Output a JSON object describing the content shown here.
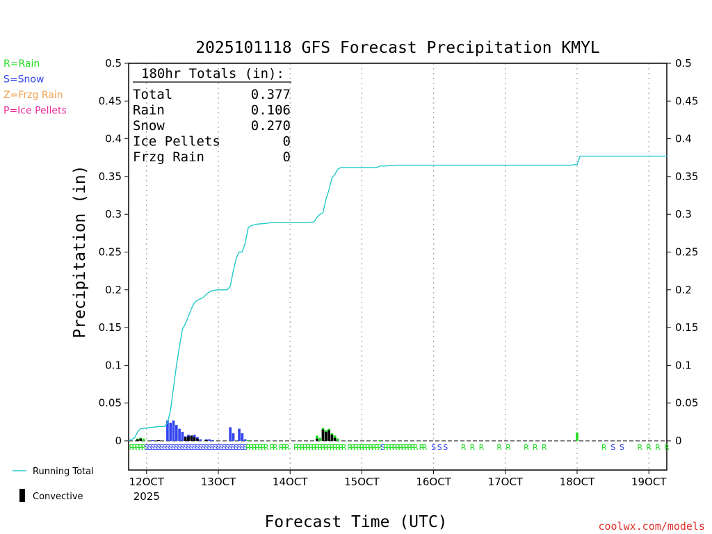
{
  "chart_data": {
    "type": "bar",
    "title": "2025101118 GFS Forecast Precipitation KMYL",
    "xlabel": "Forecast Time (UTC)",
    "ylabel": "Precipitation (in)",
    "ylim": [
      0,
      0.5
    ],
    "yticks": [
      "0",
      "0.05",
      "0.1",
      "0.15",
      "0.2",
      "0.25",
      "0.3",
      "0.35",
      "0.4",
      "0.45",
      "0.5"
    ],
    "xticks": [
      {
        "label": "12OCT",
        "sub": "2025",
        "hour": 6
      },
      {
        "label": "13OCT",
        "sub": "",
        "hour": 30
      },
      {
        "label": "14OCT",
        "sub": "",
        "hour": 54
      },
      {
        "label": "15OCT",
        "sub": "",
        "hour": 78
      },
      {
        "label": "16OCT",
        "sub": "",
        "hour": 102
      },
      {
        "label": "17OCT",
        "sub": "",
        "hour": 126
      },
      {
        "label": "18OCT",
        "sub": "",
        "hour": 150
      },
      {
        "label": "19OCT",
        "sub": "",
        "hour": 174
      }
    ],
    "xlim_hours": [
      0,
      180
    ],
    "grid": true,
    "type_legend": [
      {
        "label": "R=Rain",
        "color": "#22dd22"
      },
      {
        "label": "S=Snow",
        "color": "#3344ee"
      },
      {
        "label": "Z=Frzg Rain",
        "color": "#f0a050"
      },
      {
        "label": "P=Ice Pellets",
        "color": "#ee2a9a"
      }
    ],
    "series_legend": [
      {
        "label": "Running Total",
        "color": "#22c8c8"
      },
      {
        "label": "Convective",
        "color": "#000000"
      }
    ],
    "totals_header": "180hr Totals (in):",
    "totals": [
      {
        "label": "Total",
        "value": "0.377"
      },
      {
        "label": "Rain",
        "value": "0.106"
      },
      {
        "label": "Snow",
        "value": "0.270"
      },
      {
        "label": "Ice Pellets",
        "value": "0"
      },
      {
        "label": "Frzg Rain",
        "value": "0"
      }
    ],
    "running_total": [
      [
        0,
        0
      ],
      [
        2,
        0.004
      ],
      [
        3,
        0.012
      ],
      [
        4,
        0.016
      ],
      [
        6,
        0.017
      ],
      [
        8,
        0.018
      ],
      [
        10,
        0.019
      ],
      [
        12,
        0.019
      ],
      [
        13,
        0.024
      ],
      [
        14,
        0.04
      ],
      [
        15,
        0.07
      ],
      [
        16,
        0.1
      ],
      [
        17,
        0.125
      ],
      [
        18,
        0.148
      ],
      [
        19,
        0.155
      ],
      [
        20,
        0.165
      ],
      [
        21,
        0.175
      ],
      [
        22,
        0.183
      ],
      [
        23,
        0.186
      ],
      [
        24,
        0.188
      ],
      [
        25,
        0.19
      ],
      [
        26,
        0.194
      ],
      [
        27,
        0.197
      ],
      [
        28,
        0.199
      ],
      [
        30,
        0.2
      ],
      [
        32,
        0.2
      ],
      [
        33,
        0.2
      ],
      [
        34,
        0.205
      ],
      [
        35,
        0.225
      ],
      [
        36,
        0.242
      ],
      [
        37,
        0.25
      ],
      [
        38,
        0.25
      ],
      [
        39,
        0.262
      ],
      [
        40,
        0.282
      ],
      [
        41,
        0.285
      ],
      [
        42,
        0.286
      ],
      [
        43,
        0.287
      ],
      [
        46,
        0.288
      ],
      [
        48,
        0.289
      ],
      [
        54,
        0.289
      ],
      [
        60,
        0.289
      ],
      [
        62,
        0.29
      ],
      [
        63,
        0.296
      ],
      [
        64,
        0.3
      ],
      [
        65,
        0.302
      ],
      [
        66,
        0.32
      ],
      [
        67,
        0.332
      ],
      [
        68,
        0.348
      ],
      [
        69,
        0.353
      ],
      [
        70,
        0.36
      ],
      [
        71,
        0.362
      ],
      [
        78,
        0.362
      ],
      [
        83,
        0.362
      ],
      [
        84,
        0.364
      ],
      [
        86,
        0.364
      ],
      [
        90,
        0.365
      ],
      [
        120,
        0.365
      ],
      [
        148,
        0.365
      ],
      [
        150,
        0.366
      ],
      [
        151,
        0.377
      ],
      [
        180,
        0.377
      ]
    ],
    "bars": [
      {
        "hour": 3,
        "value": 0.003,
        "type": "R"
      },
      {
        "hour": 4,
        "value": 0.004,
        "type": "R"
      },
      {
        "hour": 5,
        "value": 0.003,
        "type": "R"
      },
      {
        "hour": 8,
        "value": 0.001,
        "type": "S"
      },
      {
        "hour": 10,
        "value": 0.001,
        "type": "S"
      },
      {
        "hour": 13,
        "value": 0.027,
        "type": "S"
      },
      {
        "hour": 14,
        "value": 0.024,
        "type": "S"
      },
      {
        "hour": 15,
        "value": 0.027,
        "type": "S"
      },
      {
        "hour": 16,
        "value": 0.021,
        "type": "S"
      },
      {
        "hour": 17,
        "value": 0.016,
        "type": "S"
      },
      {
        "hour": 18,
        "value": 0.012,
        "type": "S"
      },
      {
        "hour": 19,
        "value": 0.006,
        "type": "S"
      },
      {
        "hour": 20,
        "value": 0.008,
        "type": "S"
      },
      {
        "hour": 21,
        "value": 0.007,
        "type": "S"
      },
      {
        "hour": 22,
        "value": 0.008,
        "type": "S"
      },
      {
        "hour": 23,
        "value": 0.005,
        "type": "S"
      },
      {
        "hour": 24,
        "value": 0.002,
        "type": "S"
      },
      {
        "hour": 26,
        "value": 0.002,
        "type": "S"
      },
      {
        "hour": 27,
        "value": 0.002,
        "type": "S"
      },
      {
        "hour": 28,
        "value": 0.001,
        "type": "S"
      },
      {
        "hour": 34,
        "value": 0.018,
        "type": "S"
      },
      {
        "hour": 35,
        "value": 0.01,
        "type": "S"
      },
      {
        "hour": 37,
        "value": 0.016,
        "type": "S"
      },
      {
        "hour": 38,
        "value": 0.01,
        "type": "S"
      },
      {
        "hour": 39,
        "value": 0.002,
        "type": "S"
      },
      {
        "hour": 40,
        "value": 0.001,
        "type": "R"
      },
      {
        "hour": 63,
        "value": 0.007,
        "type": "R"
      },
      {
        "hour": 64,
        "value": 0.004,
        "type": "R"
      },
      {
        "hour": 65,
        "value": 0.017,
        "type": "R"
      },
      {
        "hour": 66,
        "value": 0.014,
        "type": "R"
      },
      {
        "hour": 67,
        "value": 0.016,
        "type": "R"
      },
      {
        "hour": 68,
        "value": 0.01,
        "type": "R"
      },
      {
        "hour": 69,
        "value": 0.007,
        "type": "R"
      },
      {
        "hour": 70,
        "value": 0.003,
        "type": "R"
      },
      {
        "hour": 84,
        "value": 0.001,
        "type": "R"
      },
      {
        "hour": 150,
        "value": 0.011,
        "type": "R"
      }
    ],
    "convective": [
      {
        "hour": 3,
        "value": 0.002
      },
      {
        "hour": 4,
        "value": 0.003
      },
      {
        "hour": 10,
        "value": 0.001
      },
      {
        "hour": 19,
        "value": 0.005
      },
      {
        "hour": 20,
        "value": 0.006
      },
      {
        "hour": 21,
        "value": 0.007
      },
      {
        "hour": 22,
        "value": 0.005
      },
      {
        "hour": 23,
        "value": 0.003
      },
      {
        "hour": 26,
        "value": 0.001
      },
      {
        "hour": 63,
        "value": 0.003
      },
      {
        "hour": 65,
        "value": 0.015
      },
      {
        "hour": 66,
        "value": 0.012
      },
      {
        "hour": 67,
        "value": 0.014
      },
      {
        "hour": 68,
        "value": 0.008
      },
      {
        "hour": 69,
        "value": 0.004
      }
    ],
    "ptype_markers": [
      [
        1,
        "R"
      ],
      [
        2,
        "R"
      ],
      [
        3,
        "R"
      ],
      [
        4,
        "R"
      ],
      [
        5,
        "R"
      ],
      [
        6,
        "S"
      ],
      [
        7,
        "S"
      ],
      [
        8,
        "S"
      ],
      [
        9,
        "S"
      ],
      [
        10,
        "S"
      ],
      [
        11,
        "S"
      ],
      [
        12,
        "S"
      ],
      [
        13,
        "S"
      ],
      [
        14,
        "S"
      ],
      [
        15,
        "S"
      ],
      [
        16,
        "S"
      ],
      [
        17,
        "S"
      ],
      [
        18,
        "S"
      ],
      [
        19,
        "S"
      ],
      [
        20,
        "S"
      ],
      [
        21,
        "S"
      ],
      [
        22,
        "S"
      ],
      [
        23,
        "S"
      ],
      [
        24,
        "S"
      ],
      [
        25,
        "S"
      ],
      [
        26,
        "S"
      ],
      [
        27,
        "S"
      ],
      [
        28,
        "S"
      ],
      [
        29,
        "S"
      ],
      [
        30,
        "S"
      ],
      [
        31,
        "S"
      ],
      [
        32,
        "S"
      ],
      [
        33,
        "S"
      ],
      [
        34,
        "S"
      ],
      [
        35,
        "S"
      ],
      [
        36,
        "S"
      ],
      [
        37,
        "S"
      ],
      [
        38,
        "S"
      ],
      [
        39,
        "S"
      ],
      [
        40,
        "R"
      ],
      [
        41,
        "R"
      ],
      [
        42,
        "R"
      ],
      [
        43,
        "R"
      ],
      [
        44,
        "R"
      ],
      [
        45,
        "R"
      ],
      [
        46,
        "R"
      ],
      [
        48,
        "R"
      ],
      [
        49,
        "R"
      ],
      [
        51,
        "R"
      ],
      [
        52,
        "R"
      ],
      [
        53,
        "R"
      ],
      [
        56,
        "R"
      ],
      [
        57,
        "R"
      ],
      [
        58,
        "R"
      ],
      [
        59,
        "R"
      ],
      [
        60,
        "R"
      ],
      [
        61,
        "R"
      ],
      [
        62,
        "R"
      ],
      [
        63,
        "R"
      ],
      [
        64,
        "R"
      ],
      [
        65,
        "R"
      ],
      [
        66,
        "R"
      ],
      [
        67,
        "R"
      ],
      [
        68,
        "R"
      ],
      [
        69,
        "R"
      ],
      [
        70,
        "R"
      ],
      [
        71,
        "R"
      ],
      [
        72,
        "R"
      ],
      [
        74,
        "R"
      ],
      [
        75,
        "R"
      ],
      [
        76,
        "R"
      ],
      [
        77,
        "R"
      ],
      [
        78,
        "R"
      ],
      [
        79,
        "R"
      ],
      [
        80,
        "R"
      ],
      [
        81,
        "R"
      ],
      [
        82,
        "R"
      ],
      [
        83,
        "R"
      ],
      [
        84,
        "R"
      ],
      [
        85,
        "S"
      ],
      [
        86,
        "R"
      ],
      [
        87,
        "R"
      ],
      [
        88,
        "R"
      ],
      [
        89,
        "R"
      ],
      [
        90,
        "R"
      ],
      [
        91,
        "R"
      ],
      [
        92,
        "R"
      ],
      [
        93,
        "R"
      ],
      [
        94,
        "R"
      ],
      [
        95,
        "R"
      ],
      [
        96,
        "R"
      ],
      [
        98,
        "R"
      ],
      [
        99,
        "R"
      ],
      [
        102,
        "S"
      ],
      [
        104,
        "S"
      ],
      [
        106,
        "S"
      ],
      [
        112,
        "R"
      ],
      [
        115,
        "R"
      ],
      [
        118,
        "R"
      ],
      [
        124,
        "R"
      ],
      [
        127,
        "R"
      ],
      [
        133,
        "R"
      ],
      [
        136,
        "R"
      ],
      [
        139,
        "R"
      ],
      [
        159,
        "R"
      ],
      [
        162,
        "S"
      ],
      [
        165,
        "S"
      ],
      [
        171,
        "R"
      ],
      [
        174,
        "R"
      ],
      [
        177,
        "R"
      ],
      [
        180,
        "R"
      ]
    ],
    "credit": "coolwx.com/models"
  }
}
